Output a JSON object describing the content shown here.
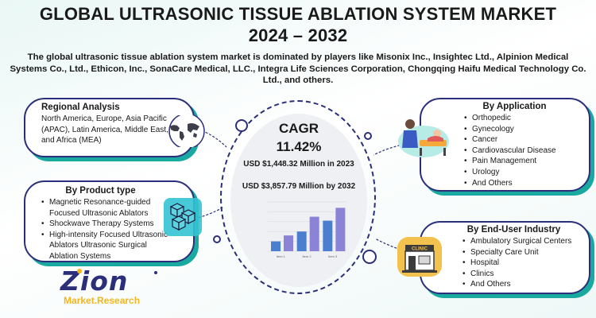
{
  "header": {
    "title_line1": "GLOBAL ULTRASONIC TISSUE ABLATION SYSTEM MARKET",
    "title_line2": "2024 – 2032",
    "subtitle": "The global ultrasonic tissue ablation system market is dominated by players like Misonix Inc., Insightec Ltd., Alpinion Medical Systems Co., Ltd., Ethicon, Inc., SonaCare Medical, LLC., Integra Life Sciences Corporation, Chongqing Haifu Medical Technology Co. Ltd., and others."
  },
  "regional": {
    "heading": "Regional Analysis",
    "text": "North America, Europe, Asia Pacific (APAC), Latin America, Middle East, and Africa (MEA)",
    "icon": "world-map-icon"
  },
  "product": {
    "heading": "By Product type",
    "items": [
      "Magnetic Resonance-guided Focused Ultrasonic Ablators",
      "Shockwave Therapy Systems",
      "High-intensity Focused Ultrasonic Ablators  Ultrasonic Surgical Ablation Systems"
    ],
    "icon": "cubes-icon"
  },
  "center": {
    "cagr_label": "CAGR",
    "cagr_value": "11.42%",
    "stat_2023": "USD $1,448.32 Million in 2023",
    "stat_2032": "USD $3,857.79 Million by 2032"
  },
  "chart_data": {
    "type": "bar",
    "categories": [
      "Item 1",
      "Item 2",
      "Item 3"
    ],
    "series": [
      {
        "values": [
          1.0,
          2.0,
          3.1
        ]
      },
      {
        "values": [
          1.6,
          3.5,
          4.4
        ]
      }
    ],
    "colors": [
      "#4a7fcf",
      "#8b83d6"
    ]
  },
  "application": {
    "heading": "By Application",
    "items": [
      "Orthopedic",
      "Gynecology",
      "Cancer",
      "Cardiovascular Disease",
      "Pain Management",
      "Urology",
      "And Others"
    ],
    "icon": "doctor-patient-icon"
  },
  "enduser": {
    "heading": "By End-User Industry",
    "items": [
      "Ambulatory Surgical Centers",
      "Specialty Care Unit",
      "Hospital",
      "Clinics",
      "And Others"
    ],
    "icon": "clinic-icon",
    "icon_text": "CLINIC"
  },
  "logo": {
    "brand": "Zion",
    "sub": "Market.Research",
    "icon": "zion-logo-icon"
  },
  "colors": {
    "navy": "#2b2f7a",
    "teal": "#1aa9a0",
    "gold": "#f2b51c",
    "purple": "#8b83d6",
    "blue": "#4a7fcf"
  }
}
